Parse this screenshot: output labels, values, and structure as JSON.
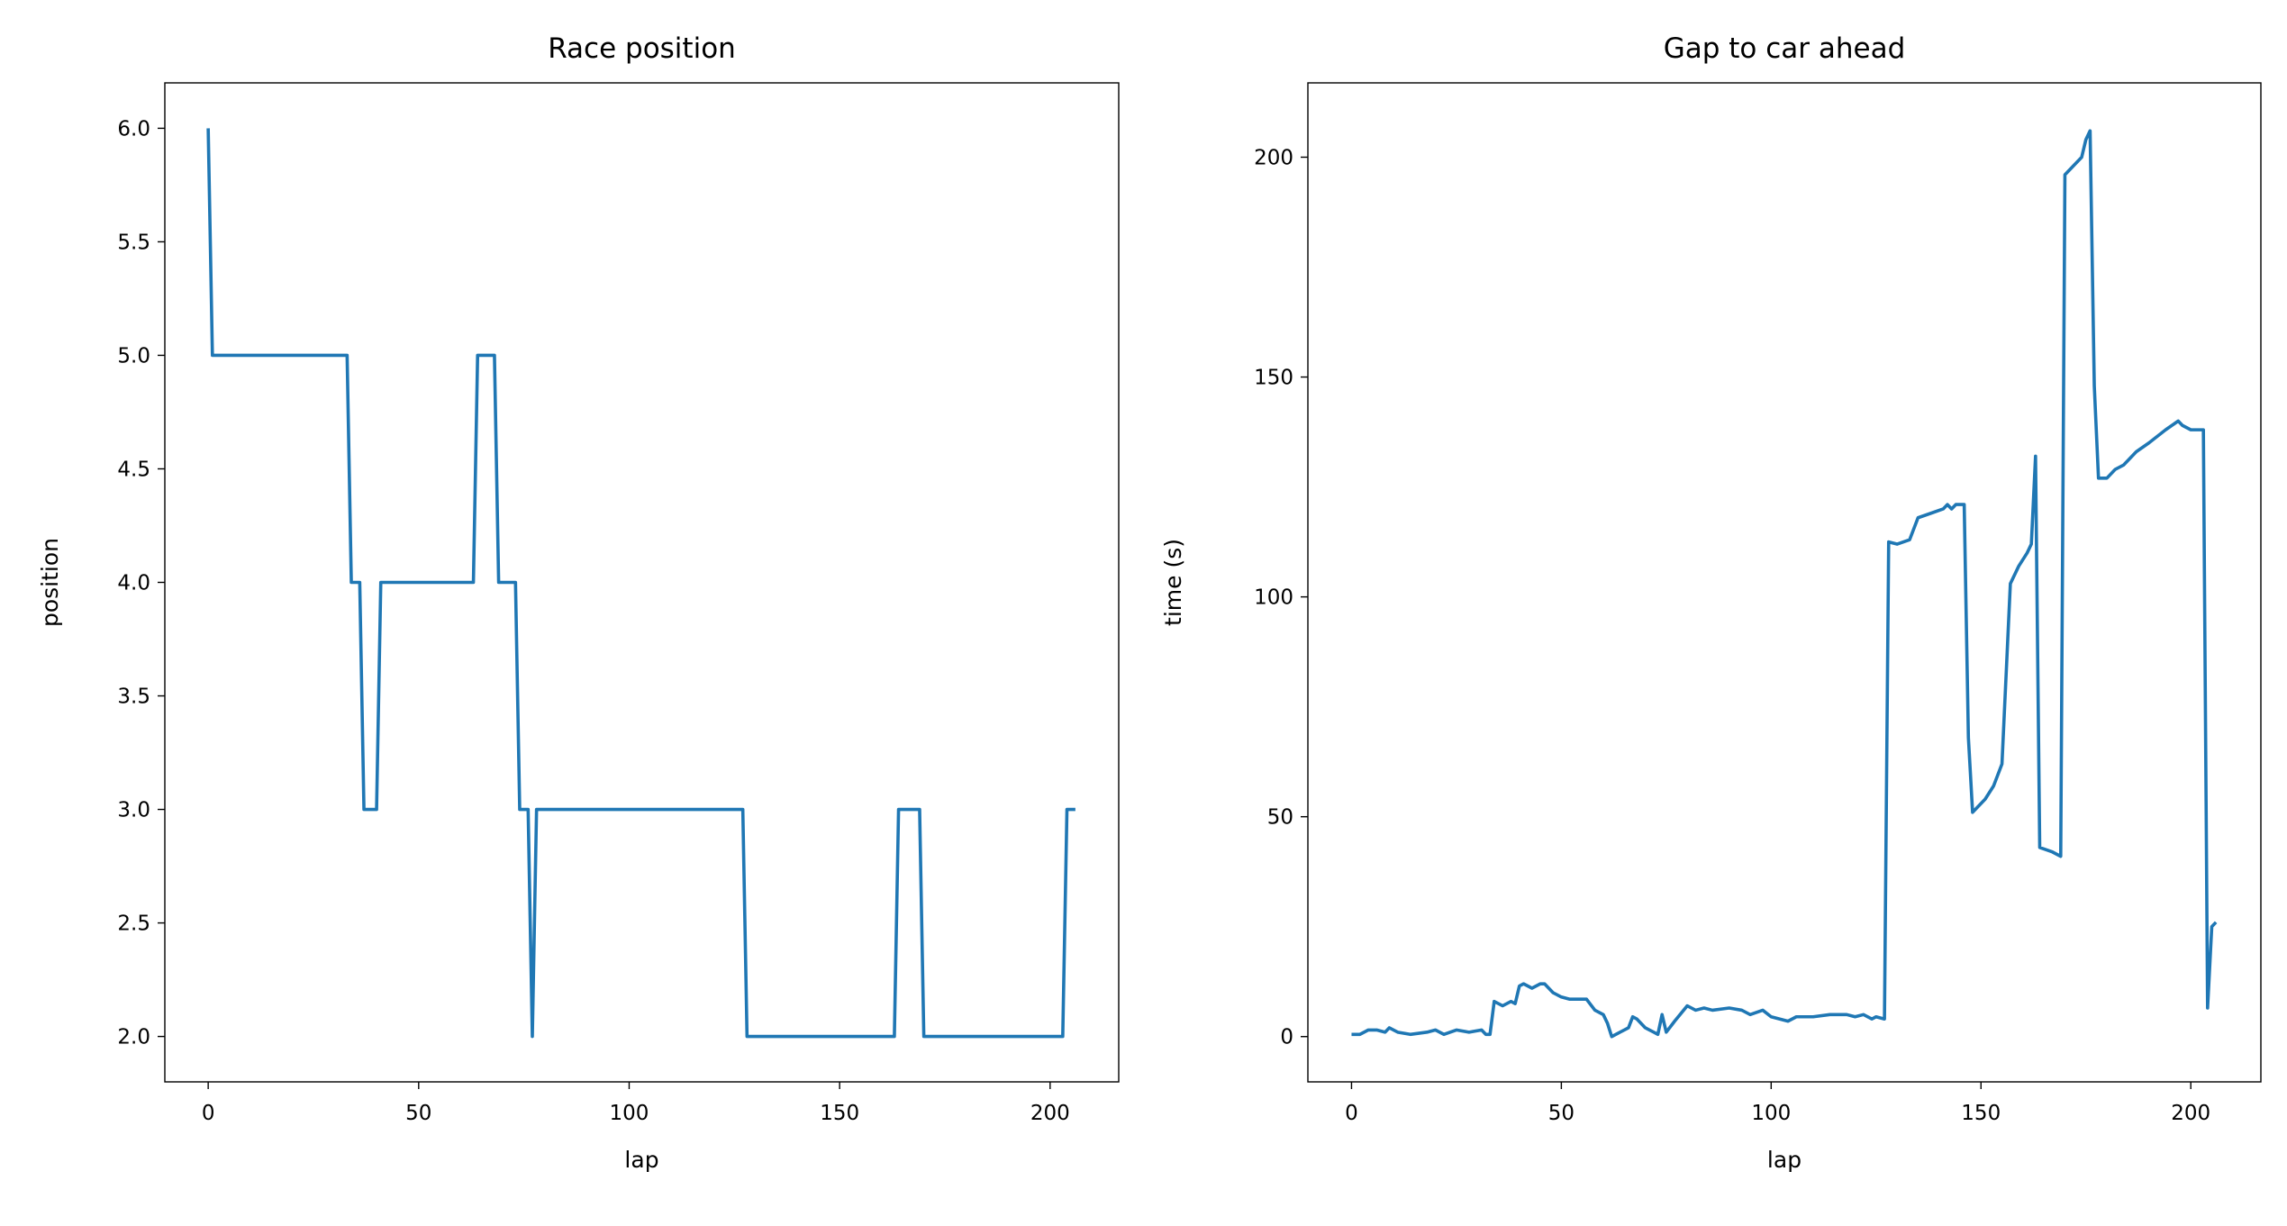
{
  "chart_data": [
    {
      "type": "line",
      "title": "Race position",
      "x_label": "lap",
      "y_label": "position",
      "xlim": [
        -10.3,
        216.3
      ],
      "ylim": [
        1.8,
        6.2
      ],
      "xticks": [
        0,
        50,
        100,
        150,
        200
      ],
      "yticks": [
        {
          "value": 2,
          "label": "2.0"
        },
        2.5,
        {
          "value": 3,
          "label": "3.0"
        },
        3.5,
        {
          "value": 4,
          "label": "4.0"
        },
        4.5,
        {
          "value": 5,
          "label": "5.0"
        },
        5.5,
        {
          "value": 6,
          "label": "6.0"
        }
      ],
      "series": [
        {
          "color": "#1f77b4",
          "x": [
            0,
            1,
            33,
            34,
            36,
            37,
            40,
            41,
            63,
            64,
            68,
            69,
            73,
            74,
            76,
            77,
            78,
            127,
            128,
            163,
            164,
            169,
            170,
            203,
            204,
            206
          ],
          "values": [
            6,
            5,
            5,
            4,
            4,
            3,
            3,
            4,
            4,
            5,
            5,
            4,
            4,
            3,
            3,
            2,
            3,
            3,
            2,
            2,
            3,
            3,
            2,
            2,
            3,
            3
          ]
        }
      ]
    },
    {
      "type": "line",
      "title": "Gap to car ahead",
      "x_label": "lap",
      "y_label": "time (s)",
      "xlim": [
        -10.4,
        216.7
      ],
      "ylim": [
        -10.3,
        216.9
      ],
      "xticks": [
        0,
        50,
        100,
        150,
        200
      ],
      "yticks": [
        0,
        50,
        100,
        150,
        200
      ],
      "series": [
        {
          "color": "#1f77b4",
          "x": [
            0,
            2,
            4,
            6,
            8,
            9,
            11,
            14,
            18,
            20,
            22,
            25,
            28,
            31,
            32,
            33,
            34,
            36,
            38,
            39,
            40,
            41,
            43,
            45,
            46,
            48,
            50,
            52,
            56,
            58,
            60,
            61,
            62,
            64,
            66,
            67,
            68,
            70,
            72,
            73,
            74,
            75,
            77,
            80,
            82,
            84,
            86,
            90,
            93,
            95,
            98,
            100,
            104,
            106,
            110,
            114,
            118,
            120,
            122,
            124,
            125,
            127,
            128,
            130,
            133,
            135,
            138,
            141,
            142,
            143,
            144,
            146,
            147,
            148,
            151,
            153,
            155,
            157,
            159,
            161,
            162,
            163,
            164,
            167,
            169,
            170,
            172,
            174,
            175,
            176,
            177,
            178,
            180,
            182,
            184,
            187,
            190,
            194,
            197,
            198,
            200,
            203,
            204,
            205,
            206
          ],
          "values": [
            0.5,
            0.5,
            1.5,
            1.5,
            1,
            2,
            1,
            0.5,
            1,
            1.5,
            0.5,
            1.5,
            1,
            1.5,
            0.5,
            0.5,
            8,
            7,
            8,
            7.5,
            11.5,
            12,
            11,
            12,
            12,
            10,
            9,
            8.5,
            8.5,
            6,
            5,
            3,
            0,
            1,
            2,
            4.5,
            4,
            2,
            1,
            0.5,
            5,
            1,
            3.5,
            7,
            6,
            6.5,
            6,
            6.5,
            6,
            5,
            6,
            4.5,
            3.5,
            4.5,
            4.5,
            5,
            5,
            4.5,
            5,
            4,
            4.5,
            4,
            112.5,
            112,
            113,
            118,
            119,
            120,
            121,
            120,
            121,
            121,
            68,
            51,
            54,
            57,
            62,
            103,
            107,
            110,
            112,
            132,
            43,
            42,
            41,
            196,
            198,
            200,
            204,
            206,
            148,
            127,
            127,
            129,
            130,
            133,
            135,
            138,
            140,
            139,
            138,
            138,
            6.5,
            25,
            26
          ]
        }
      ]
    }
  ]
}
